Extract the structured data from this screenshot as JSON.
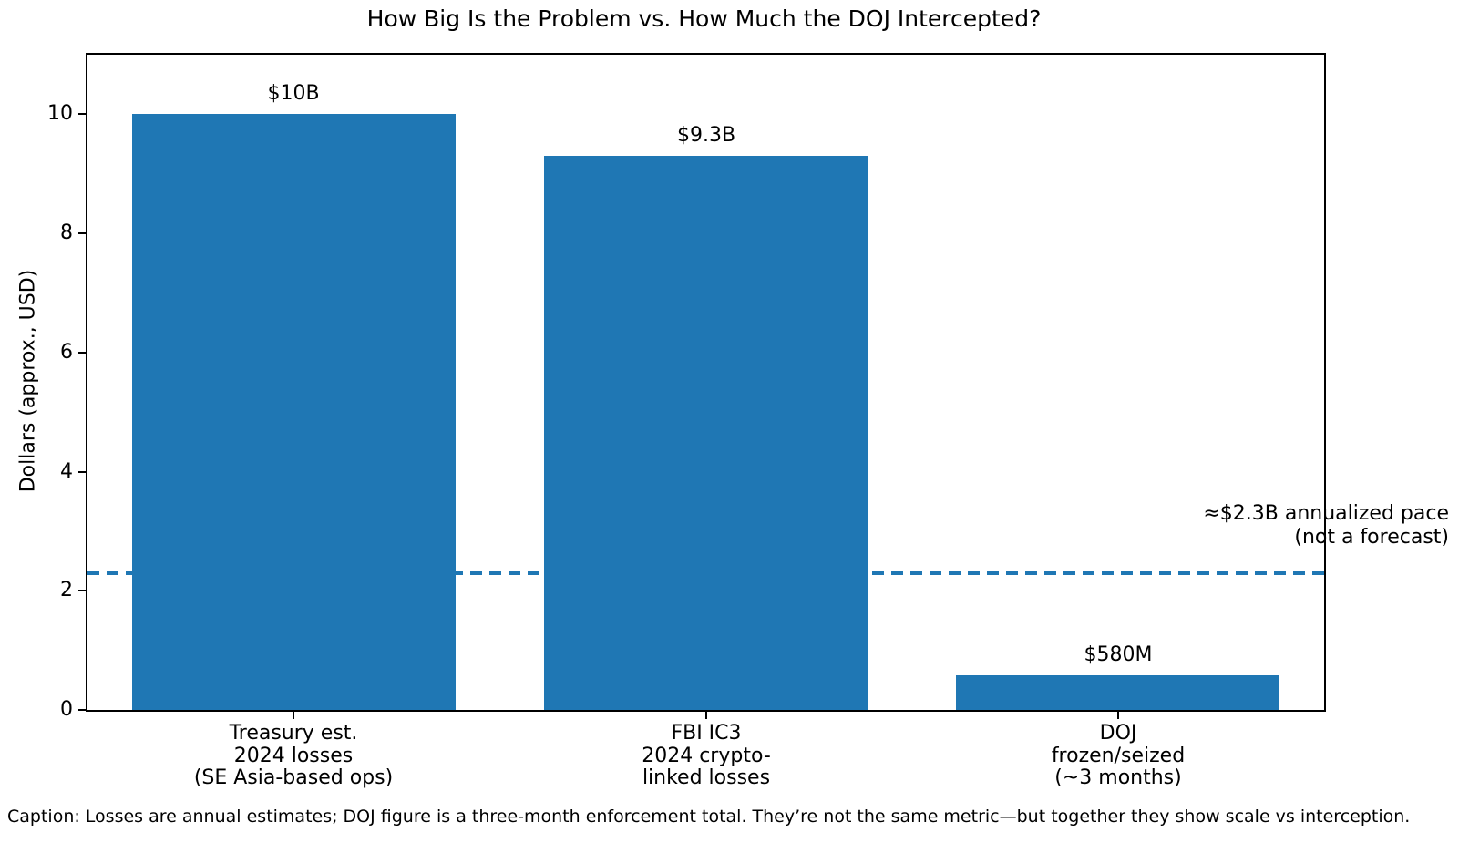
{
  "chart_data": {
    "type": "bar",
    "title": "How Big Is the Problem vs. How Much the DOJ Intercepted?",
    "ylabel": "Dollars (approx., USD)",
    "xlabel": "",
    "categories": [
      "Treasury est.\n2024 losses\n(SE Asia-based ops)",
      "FBI IC3\n2024 crypto-\nlinked losses",
      "DOJ\nfrozen/seized\n(~3 months)"
    ],
    "values": [
      10,
      9.3,
      0.58
    ],
    "bar_labels": [
      "$10B",
      "$9.3B",
      "$580M"
    ],
    "ylim": [
      0,
      11
    ],
    "yticks": [
      0,
      2,
      4,
      6,
      8,
      10
    ],
    "grid": false,
    "legend": false,
    "bar_color": "#1f77b4",
    "axis_color": "#000000",
    "reference_line": {
      "y": 2.3,
      "style": "dashed",
      "color": "#1f77b4",
      "label": "≈$2.3B annualized pace\n(not a forecast)"
    },
    "caption": "Caption: Losses are annual estimates; DOJ figure is a three-month enforcement total. They’re not the same metric—but together they show scale vs interception."
  }
}
